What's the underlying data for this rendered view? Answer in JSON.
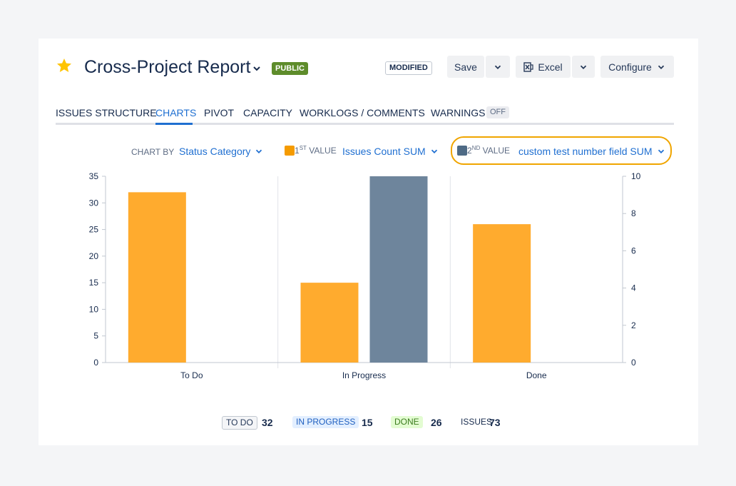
{
  "header": {
    "title": "Cross-Project Report",
    "visibility_badge": "PUBLIC",
    "modified_badge": "MODIFIED",
    "save_label": "Save",
    "excel_label": "Excel",
    "configure_label": "Configure"
  },
  "tabs": [
    {
      "label": "ISSUES STRUCTURE"
    },
    {
      "label": "CHARTS",
      "active": true
    },
    {
      "label": "PIVOT"
    },
    {
      "label": "CAPACITY"
    },
    {
      "label": "WORKLOGS / COMMENTS"
    },
    {
      "label": "WARNINGS",
      "badge": "OFF"
    }
  ],
  "controls": {
    "chart_by_label": "CHART BY",
    "chart_by_value": "Status Category",
    "first_value_num": "1",
    "first_value_sup": "ST",
    "first_value_label": "VALUE",
    "first_value_field": "Issues Count SUM",
    "second_value_num": "2",
    "second_value_sup": "ND",
    "second_value_label": "VALUE",
    "second_value_field": "custom test number field SUM"
  },
  "colors": {
    "series1": "#ffab2e",
    "series2": "#6e859c",
    "accent": "#1f6fd1",
    "highlight": "#f0a500"
  },
  "chart_data": {
    "type": "bar",
    "categories": [
      "To Do",
      "In Progress",
      "Done"
    ],
    "series": [
      {
        "values": [
          32,
          15,
          26
        ],
        "axis": "left"
      },
      {
        "values": [
          0,
          10,
          0
        ],
        "axis": "right"
      }
    ],
    "left_axis": {
      "ylim": [
        0,
        35
      ],
      "ticks": [
        0,
        5,
        10,
        15,
        20,
        25,
        30,
        35
      ]
    },
    "right_axis": {
      "ylim": [
        0,
        10
      ],
      "ticks": [
        0,
        2,
        4,
        6,
        8,
        10
      ]
    }
  },
  "summary": [
    {
      "label": "TO DO",
      "value": "32"
    },
    {
      "label": "IN PROGRESS",
      "value": "15"
    },
    {
      "label": "DONE",
      "value": "26"
    },
    {
      "label": "ISSUES",
      "value": "73"
    }
  ]
}
